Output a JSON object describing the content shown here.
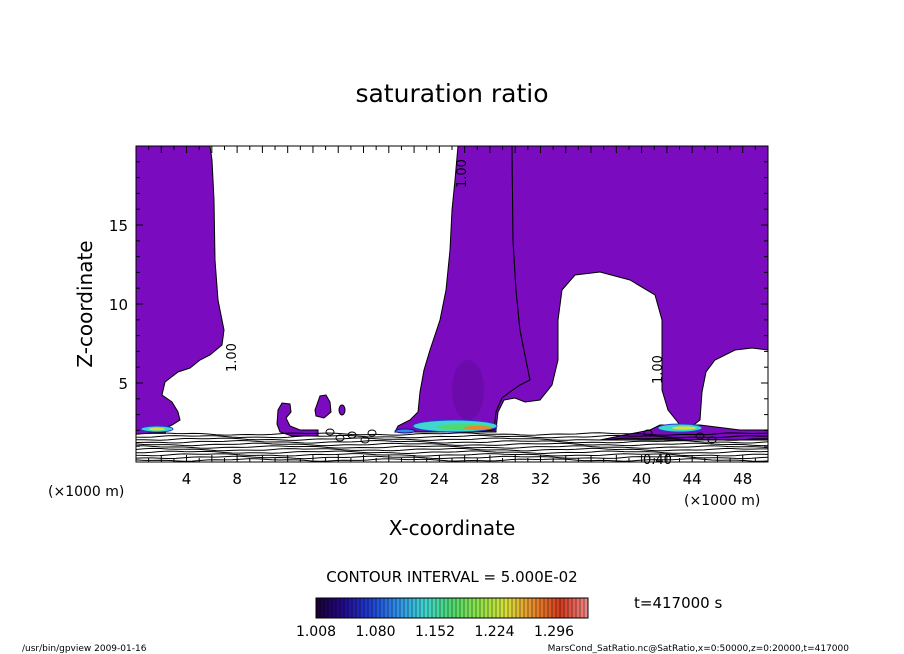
{
  "chart_data": {
    "type": "contour",
    "title": "saturation ratio",
    "xlabel": "X-coordinate",
    "ylabel": "Z-coordinate",
    "x_unit": "(×1000 m)",
    "x_unit_right": "(×1000 m)",
    "xlim": [
      0,
      50
    ],
    "ylim": [
      0,
      20
    ],
    "xticks": [
      4,
      8,
      12,
      16,
      20,
      24,
      28,
      32,
      36,
      40,
      44,
      48
    ],
    "yticks": [
      5,
      10,
      15
    ],
    "contour_interval_text": "CONTOUR INTERVAL = 5.000E-02",
    "time_text": "t=417000 s",
    "contour_labels": [
      "1.00",
      "1.00",
      "1.00",
      "0.40"
    ],
    "colorbar": {
      "tick_labels": [
        "1.008",
        "1.080",
        "1.152",
        "1.224",
        "1.296"
      ],
      "range": [
        1.008,
        1.296
      ],
      "colors": [
        "#1a0030",
        "#220a8a",
        "#1f3fd0",
        "#2f8fe8",
        "#3fd6d0",
        "#4fd96f",
        "#8fe34a",
        "#d9e03a",
        "#e88a2a",
        "#d23a1f",
        "#f08a8a"
      ]
    },
    "fill_color": "#7a0bbf",
    "regions": [
      {
        "name": "left column",
        "x": [
          0,
          6.0
        ],
        "z": [
          1.7,
          20
        ]
      },
      {
        "name": "central column",
        "x": [
          20.5,
          29.5
        ],
        "z": [
          1.7,
          20
        ]
      },
      {
        "name": "right region",
        "x": [
          29.5,
          50
        ],
        "z": [
          1.7,
          20
        ]
      }
    ]
  },
  "footer": {
    "left": "/usr/bin/gpview   2009-01-16",
    "right": "MarsCond_SatRatio.nc@SatRatio,x=0:50000,z=0:20000,t=417000"
  }
}
